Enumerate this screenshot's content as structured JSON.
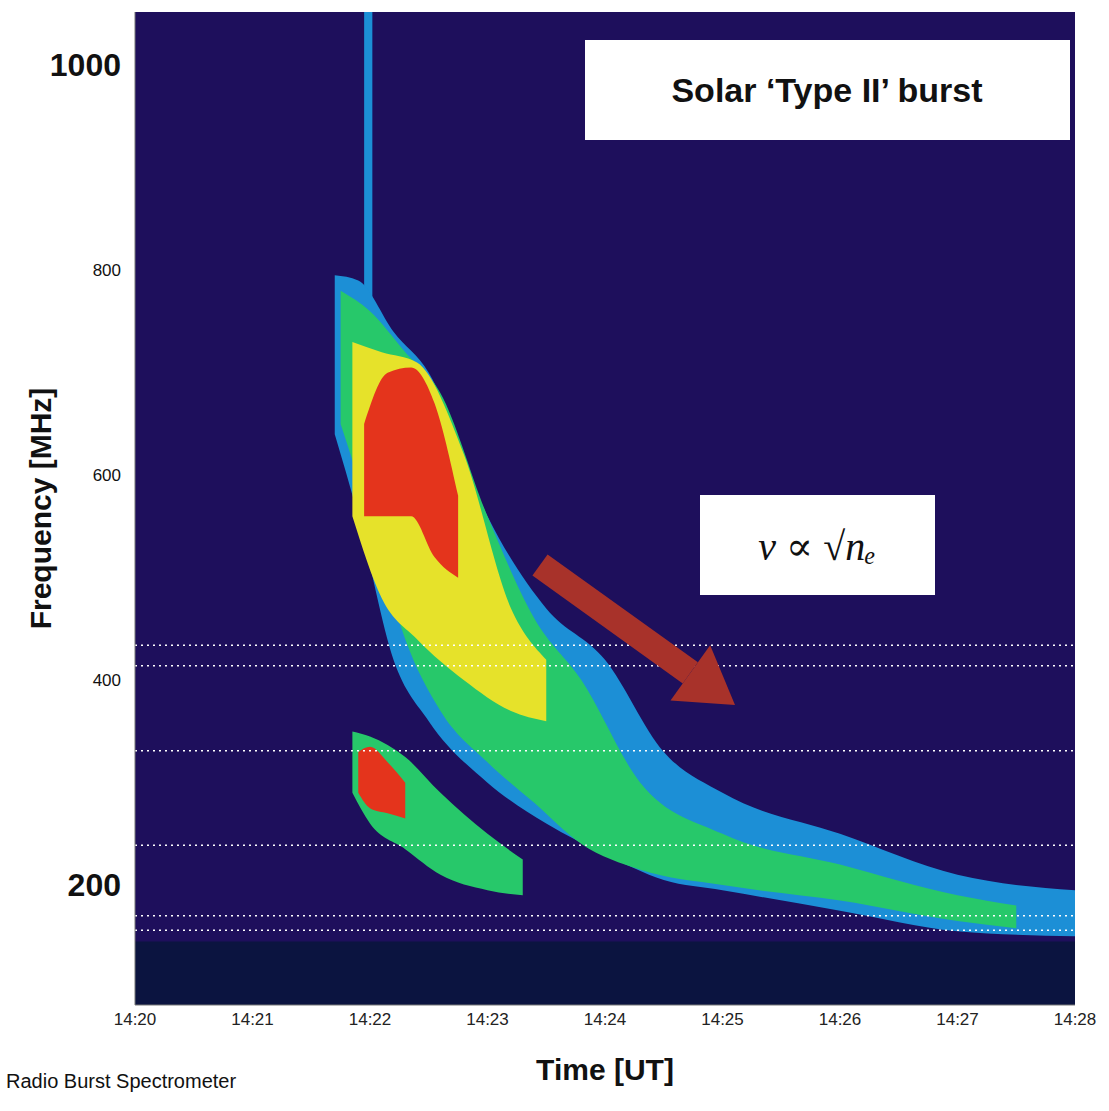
{
  "chart_data": {
    "type": "area",
    "title": "Solar ‘Type II’ burst",
    "x_label": "Time [UT]",
    "y_label": "Frequency [MHz]",
    "annotation": "ν ∝ √nₑ",
    "source": "Radio Burst Spectrometer",
    "xlim": [
      860,
      868
    ],
    "xticks": [
      {
        "value": 860,
        "label": "14:20"
      },
      {
        "value": 861,
        "label": "14:21"
      },
      {
        "value": 862,
        "label": "14:22"
      },
      {
        "value": 863,
        "label": "14:23"
      },
      {
        "value": 864,
        "label": "14:24"
      },
      {
        "value": 865,
        "label": "14:25"
      },
      {
        "value": 866,
        "label": "14:26"
      },
      {
        "value": 867,
        "label": "14:27"
      },
      {
        "value": 868,
        "label": "14:28"
      }
    ],
    "ylim": [
      83,
      1052
    ],
    "yticks": [
      200,
      400,
      600,
      800,
      1000
    ],
    "grid": false,
    "dotted_lines": [
      434,
      414,
      331,
      239,
      170,
      156
    ],
    "series": [
      {
        "color": "#0b1440",
        "x": [
          860,
          868
        ],
        "low": [
          83,
          83
        ],
        "high": [
          145,
          145
        ]
      },
      {
        "color": "#1c8fd6",
        "x": [
          861.95,
          862.02
        ],
        "low": [
          760,
          760
        ],
        "high": [
          1052,
          1052
        ]
      },
      {
        "color": "#1c8fd6",
        "x": [
          861.7,
          861.9,
          862.2,
          862.5,
          863.0,
          863.5,
          864.0,
          864.5,
          865.0,
          866.0,
          867.0,
          868.0
        ],
        "low": [
          640,
          560,
          420,
          360,
          300,
          260,
          230,
          205,
          195,
          175,
          155,
          150
        ],
        "high": [
          795,
          790,
          740,
          700,
          560,
          470,
          420,
          330,
          290,
          250,
          210,
          195
        ]
      },
      {
        "color": "#27c86a",
        "x": [
          861.75,
          862.0,
          862.3,
          862.6,
          863.0,
          863.4,
          863.8,
          864.3,
          865.0,
          866.0,
          867.0,
          867.5
        ],
        "low": [
          650,
          560,
          440,
          370,
          320,
          280,
          240,
          215,
          200,
          185,
          165,
          158
        ],
        "high": [
          780,
          760,
          720,
          680,
          560,
          460,
          400,
          300,
          250,
          220,
          190,
          180
        ]
      },
      {
        "color": "#e6e22a",
        "x": [
          861.85,
          862.1,
          862.4,
          862.8,
          863.2,
          863.5
        ],
        "low": [
          560,
          480,
          440,
          400,
          370,
          360
        ],
        "high": [
          730,
          720,
          710,
          620,
          470,
          420
        ]
      },
      {
        "color": "#e4341c",
        "x": [
          861.95,
          862.15,
          862.35,
          862.55,
          862.75
        ],
        "low": [
          560,
          560,
          560,
          520,
          500
        ],
        "high": [
          650,
          700,
          705,
          670,
          580
        ]
      },
      {
        "color": "#27c86a",
        "x": [
          861.85,
          862.0,
          862.3,
          862.6,
          863.0,
          863.3
        ],
        "low": [
          290,
          260,
          235,
          210,
          195,
          190
        ],
        "high": [
          350,
          345,
          325,
          290,
          250,
          225
        ]
      },
      {
        "color": "#e4341c",
        "x": [
          861.9,
          862.0,
          862.15,
          862.3
        ],
        "low": [
          290,
          275,
          270,
          265
        ],
        "high": [
          330,
          335,
          320,
          300
        ]
      }
    ]
  }
}
